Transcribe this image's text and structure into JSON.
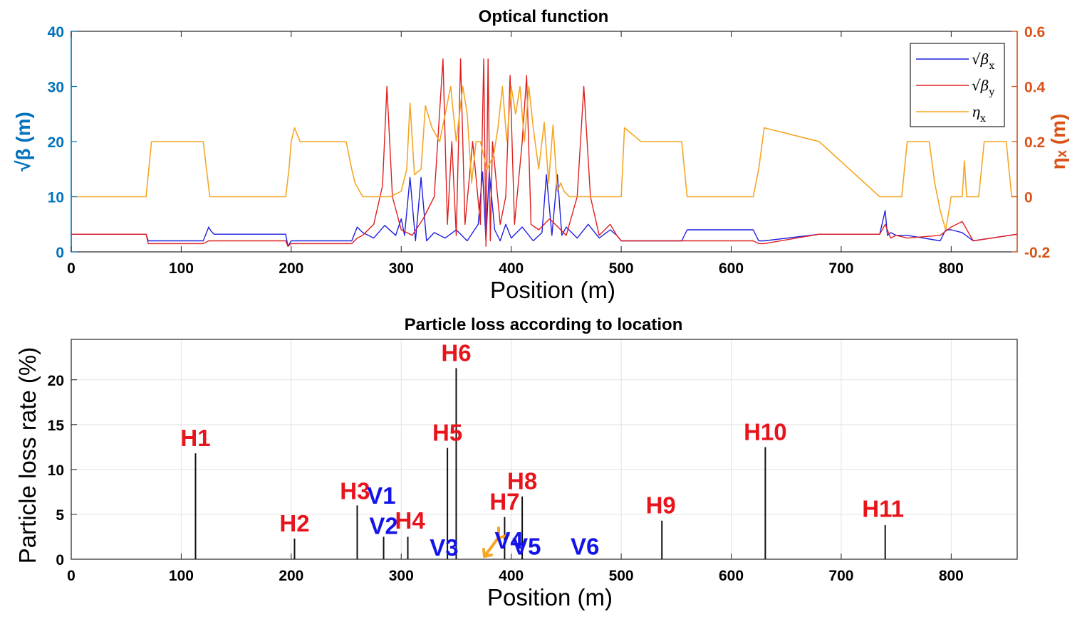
{
  "chart_data": [
    {
      "type": "line",
      "title": "Optical function",
      "xlabel": "Position (m)",
      "ylabel_left": "√β (m)",
      "ylabel_right": "ηₓ (m)",
      "xlim": [
        0,
        860
      ],
      "ylim_left": [
        0,
        40
      ],
      "ylim_right": [
        -0.2,
        0.6
      ],
      "x_ticks": [
        0,
        100,
        200,
        300,
        400,
        500,
        600,
        700,
        800
      ],
      "y_left_ticks": [
        0,
        10,
        20,
        30,
        40
      ],
      "y_right_ticks": [
        "-0.2",
        "0",
        "0.2",
        "0.4",
        "0.6"
      ],
      "legend_position": "top-right",
      "colors": {
        "beta_x": "#1f1fe0",
        "beta_y": "#e01f1f",
        "eta_x": "#f5a623",
        "left_axis": "#0072bd",
        "right_axis": "#d95319"
      },
      "series": [
        {
          "name": "√βx",
          "legend_base": "√β",
          "legend_sub": "x",
          "color": "#1f1fe0",
          "x": [
            0,
            68,
            70,
            120,
            125,
            127,
            130,
            195,
            197,
            200,
            205,
            255,
            260,
            265,
            275,
            285,
            295,
            300,
            303,
            308,
            313,
            318,
            323,
            330,
            340,
            350,
            360,
            370,
            374,
            377,
            380,
            385,
            390,
            395,
            400,
            410,
            420,
            428,
            432,
            437,
            442,
            446,
            450,
            460,
            470,
            480,
            490,
            496,
            500,
            555,
            560,
            620,
            625,
            630,
            680,
            735,
            740,
            742,
            745,
            750,
            760,
            790,
            795,
            800,
            810,
            820,
            860
          ],
          "y": [
            3.2,
            3.2,
            2.0,
            2.0,
            4.5,
            3.8,
            3.2,
            3.2,
            1.0,
            2.0,
            2.0,
            2.0,
            4.5,
            3.5,
            2.5,
            4.8,
            3.0,
            6.0,
            3.0,
            13.5,
            2.0,
            13.5,
            2.0,
            3.5,
            2.5,
            4.0,
            2.0,
            5.0,
            14.5,
            2.0,
            14.5,
            4.0,
            2.0,
            5.0,
            2.5,
            4.5,
            2.0,
            3.5,
            14.0,
            3.0,
            14.0,
            3.0,
            4.5,
            2.5,
            5.0,
            2.5,
            4.0,
            3.0,
            2.0,
            2.0,
            4.0,
            4.0,
            2.0,
            2.0,
            3.2,
            3.2,
            7.5,
            3.0,
            3.5,
            3.0,
            3.0,
            2.0,
            4.0,
            4.0,
            3.5,
            2.0,
            3.2
          ]
        },
        {
          "name": "√βy",
          "legend_base": "√β",
          "legend_sub": "y",
          "color": "#e01f1f",
          "x": [
            0,
            68,
            70,
            120,
            125,
            127,
            130,
            195,
            197,
            200,
            205,
            255,
            260,
            265,
            275,
            283,
            287,
            292,
            300,
            310,
            320,
            330,
            338,
            342,
            346,
            350,
            354,
            358,
            365,
            372,
            375,
            377,
            379,
            381,
            383,
            390,
            395,
            399,
            403,
            410,
            414,
            418,
            425,
            435,
            450,
            460,
            466,
            472,
            480,
            490,
            496,
            500,
            555,
            560,
            620,
            625,
            630,
            680,
            735,
            740,
            745,
            750,
            760,
            790,
            800,
            810,
            820,
            860
          ],
          "y": [
            3.2,
            3.2,
            1.5,
            1.5,
            2.0,
            2.0,
            2.0,
            2.0,
            1.0,
            1.5,
            1.5,
            1.5,
            2.5,
            3.0,
            5.0,
            12.0,
            30.0,
            10.0,
            4.0,
            3.0,
            6.0,
            10.0,
            35.0,
            5.0,
            20.0,
            3.0,
            35.0,
            5.0,
            20.0,
            5.0,
            35.0,
            1.0,
            35.0,
            2.0,
            20.0,
            5.0,
            10.0,
            32.0,
            5.0,
            20.0,
            32.0,
            5.0,
            4.0,
            6.0,
            3.0,
            10.0,
            30.0,
            10.0,
            3.0,
            5.0,
            3.0,
            2.0,
            2.0,
            2.0,
            2.0,
            1.5,
            1.5,
            3.2,
            3.2,
            5.0,
            2.5,
            3.0,
            2.5,
            3.0,
            4.5,
            5.5,
            2.0,
            3.2
          ]
        },
        {
          "name": "ηx",
          "legend_base": "η",
          "legend_sub": "x",
          "color": "#f5a623",
          "x": [
            0,
            68,
            73,
            120,
            123,
            126,
            130,
            195,
            198,
            200,
            203,
            208,
            250,
            255,
            258,
            265,
            275,
            290,
            300,
            305,
            308,
            312,
            318,
            322,
            328,
            335,
            340,
            345,
            350,
            356,
            360,
            364,
            368,
            372,
            378,
            384,
            388,
            392,
            396,
            400,
            404,
            408,
            412,
            416,
            420,
            425,
            430,
            434,
            438,
            442,
            445,
            448,
            453,
            460,
            475,
            490,
            495,
            500,
            503,
            518,
            555,
            560,
            620,
            625,
            630,
            680,
            735,
            755,
            760,
            780,
            785,
            790,
            795,
            798,
            800,
            805,
            810,
            812,
            814,
            818,
            825,
            830,
            850,
            855,
            860
          ],
          "y": [
            0,
            0,
            0.2,
            0.2,
            0.1,
            0.0,
            0,
            0,
            0.1,
            0.2,
            0.25,
            0.2,
            0.2,
            0.1,
            0.05,
            0,
            0,
            0,
            0.02,
            0.1,
            0.34,
            0.08,
            0.1,
            0.33,
            0.25,
            0.2,
            0.3,
            0.4,
            0.2,
            0.4,
            0.3,
            0.05,
            0.2,
            0.2,
            0.1,
            0.15,
            0.25,
            0.4,
            0.2,
            0.4,
            0.3,
            0.4,
            0.2,
            0.4,
            0.25,
            0.1,
            0.27,
            0.05,
            0.26,
            0.02,
            0.05,
            0.02,
            0,
            0,
            0,
            0,
            0,
            0,
            0.25,
            0.2,
            0.2,
            0,
            0,
            0.1,
            0.25,
            0.2,
            0,
            0,
            0.2,
            0.2,
            0.05,
            -0.05,
            -0.12,
            -0.05,
            0,
            0,
            0,
            0.13,
            0,
            0,
            0,
            0.2,
            0.2,
            0,
            0
          ]
        }
      ]
    },
    {
      "type": "bar",
      "title": "Particle loss according to location",
      "xlabel": "Position (m)",
      "ylabel": "Particle loss rate (%)",
      "xlim": [
        0,
        860
      ],
      "ylim": [
        0,
        24.5
      ],
      "x_ticks": [
        0,
        100,
        200,
        300,
        400,
        500,
        600,
        700,
        800
      ],
      "y_ticks": [
        0,
        5,
        10,
        15,
        20
      ],
      "grid": true,
      "bars": [
        {
          "x": 113,
          "value": 11.8
        },
        {
          "x": 203,
          "value": 2.3
        },
        {
          "x": 260,
          "value": 6.0
        },
        {
          "x": 284,
          "value": 2.5
        },
        {
          "x": 306,
          "value": 2.5
        },
        {
          "x": 342,
          "value": 12.4
        },
        {
          "x": 350,
          "value": 21.3
        },
        {
          "x": 394,
          "value": 4.7
        },
        {
          "x": 410,
          "value": 7.0
        },
        {
          "x": 537,
          "value": 4.3
        },
        {
          "x": 631,
          "value": 12.5
        },
        {
          "x": 740,
          "value": 3.8
        }
      ],
      "annotations": [
        {
          "text": "H1",
          "x": 113,
          "y": 12.6,
          "color": "#e8141c"
        },
        {
          "text": "H2",
          "x": 203,
          "y": 3.1,
          "color": "#e8141c"
        },
        {
          "text": "H3",
          "x": 258,
          "y": 6.7,
          "color": "#e8141c"
        },
        {
          "text": "V1",
          "x": 282,
          "y": 6.2,
          "color": "#1414e8"
        },
        {
          "text": "V2",
          "x": 284,
          "y": 2.8,
          "color": "#1414e8"
        },
        {
          "text": "H4",
          "x": 308,
          "y": 3.4,
          "color": "#e8141c"
        },
        {
          "text": "V3",
          "x": 339,
          "y": 0.4,
          "color": "#1414e8"
        },
        {
          "text": "H5",
          "x": 342,
          "y": 13.2,
          "color": "#e8141c"
        },
        {
          "text": "H6",
          "x": 350,
          "y": 22.1,
          "color": "#e8141c"
        },
        {
          "text": "H7",
          "x": 394,
          "y": 5.5,
          "color": "#e8141c"
        },
        {
          "text": "V4",
          "x": 398,
          "y": 1.2,
          "color": "#1414e8"
        },
        {
          "text": "V5",
          "x": 414,
          "y": 0.5,
          "color": "#1414e8"
        },
        {
          "text": "H8",
          "x": 410,
          "y": 7.8,
          "color": "#e8141c"
        },
        {
          "text": "V6",
          "x": 467,
          "y": 0.5,
          "color": "#1414e8"
        },
        {
          "text": "H9",
          "x": 536,
          "y": 5.1,
          "color": "#e8141c"
        },
        {
          "text": "H10",
          "x": 631,
          "y": 13.3,
          "color": "#e8141c"
        },
        {
          "text": "H11",
          "x": 738,
          "y": 4.7,
          "color": "#e8141c"
        }
      ]
    }
  ]
}
